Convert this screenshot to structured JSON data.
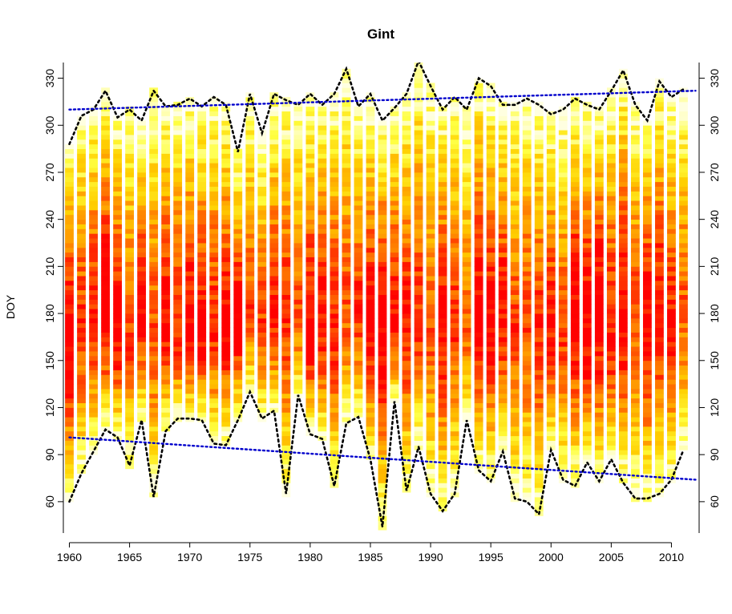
{
  "chart_data": {
    "type": "heatmap",
    "title": "Gint",
    "xlabel": "",
    "ylabel": "DOY",
    "xlim": [
      1959.5,
      2012.3
    ],
    "ylim": [
      40,
      340
    ],
    "x_ticks": [
      1960,
      1965,
      1970,
      1975,
      1980,
      1985,
      1990,
      1995,
      2000,
      2005,
      2010
    ],
    "y_ticks": [
      60,
      90,
      120,
      150,
      180,
      210,
      240,
      270,
      300,
      330
    ],
    "right_axis_ticks": [
      60,
      90,
      120,
      150,
      180,
      210,
      240,
      270,
      300,
      330
    ],
    "color_scale": [
      "#ffffe0",
      "#ffff40",
      "#ffd000",
      "#ff9900",
      "#ff4d00",
      "#ff0000"
    ],
    "years": [
      1960,
      1961,
      1962,
      1963,
      1964,
      1965,
      1966,
      1967,
      1968,
      1969,
      1970,
      1971,
      1972,
      1973,
      1974,
      1975,
      1976,
      1977,
      1978,
      1979,
      1980,
      1981,
      1982,
      1983,
      1984,
      1985,
      1986,
      1987,
      1988,
      1989,
      1990,
      1991,
      1992,
      1993,
      1994,
      1995,
      1996,
      1997,
      1998,
      1999,
      2000,
      2001,
      2002,
      2003,
      2004,
      2005,
      2006,
      2007,
      2008,
      2009,
      2010,
      2011
    ],
    "season_start": [
      60,
      78,
      92,
      106,
      101,
      83,
      112,
      63,
      105,
      113,
      113,
      112,
      97,
      96,
      112,
      130,
      113,
      118,
      65,
      128,
      103,
      100,
      70,
      110,
      114,
      87,
      44,
      124,
      67,
      95,
      65,
      54,
      65,
      112,
      80,
      73,
      92,
      62,
      60,
      52,
      93,
      74,
      70,
      85,
      73,
      87,
      72,
      62,
      62,
      65,
      74,
      93
    ],
    "season_end": [
      288,
      306,
      310,
      322,
      305,
      310,
      303,
      322,
      312,
      313,
      317,
      312,
      318,
      313,
      283,
      320,
      295,
      320,
      316,
      313,
      320,
      313,
      320,
      336,
      312,
      320,
      303,
      311,
      320,
      341,
      325,
      310,
      318,
      310,
      330,
      325,
      313,
      313,
      317,
      313,
      307,
      310,
      317,
      313,
      310,
      322,
      335,
      313,
      303,
      328,
      318,
      323
    ],
    "series": [
      {
        "name": "",
        "type": "trend",
        "color": "#0000cc",
        "x": [
          1960,
          2012
        ],
        "y": [
          310,
          322
        ]
      },
      {
        "name": "",
        "type": "trend",
        "color": "#0000cc",
        "x": [
          1960,
          2012
        ],
        "y": [
          101,
          74
        ]
      }
    ]
  }
}
